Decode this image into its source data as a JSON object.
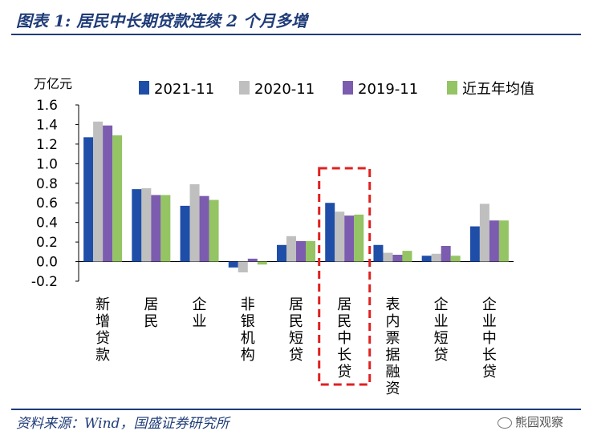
{
  "header": {
    "title": "图表 1: 居民中长期贷款连续 2 个月多增"
  },
  "footer": {
    "source": "资料来源：Wind，国盛证券研究所",
    "watermark": "熊园观察"
  },
  "colors": {
    "series": [
      "#1f4ea8",
      "#bfbfbf",
      "#7b5cae",
      "#94c463"
    ],
    "highlight": "#e02020",
    "title": "#1f3c78"
  },
  "chart_data": {
    "type": "bar",
    "ylabel": "万亿元",
    "ylim": [
      -0.2,
      1.6
    ],
    "yticks": [
      "-0.2",
      "0.0",
      "0.2",
      "0.4",
      "0.6",
      "0.8",
      "1.0",
      "1.2",
      "1.4",
      "1.6"
    ],
    "grid": false,
    "legend_position": "top",
    "categories": [
      "新增贷款",
      "居民",
      "企业",
      "非银机构",
      "居民短贷",
      "居民中长贷",
      "表内票据融资",
      "企业短贷",
      "企业中长贷"
    ],
    "highlighted_category": "居民中长贷",
    "series": [
      {
        "name": "2021-11",
        "values": [
          1.27,
          0.74,
          0.57,
          -0.06,
          0.17,
          0.6,
          0.17,
          0.06,
          0.36
        ]
      },
      {
        "name": "2020-11",
        "values": [
          1.43,
          0.75,
          0.79,
          -0.11,
          0.26,
          0.51,
          0.09,
          0.08,
          0.59
        ]
      },
      {
        "name": "2019-11",
        "values": [
          1.39,
          0.68,
          0.67,
          0.03,
          0.21,
          0.47,
          0.07,
          0.16,
          0.42
        ]
      },
      {
        "name": "近五年均值",
        "values": [
          1.29,
          0.68,
          0.63,
          -0.03,
          0.21,
          0.48,
          0.11,
          0.06,
          0.42
        ]
      }
    ]
  }
}
